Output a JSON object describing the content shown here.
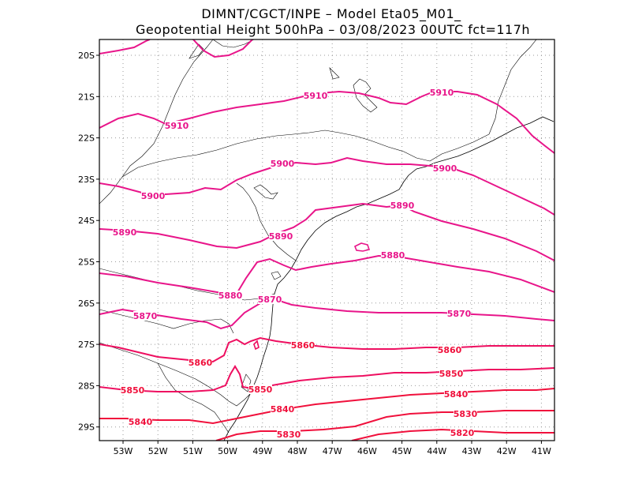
{
  "header": {
    "line1": "DIMNT/CGCT/INPE –  Model Eta05_M01_",
    "line2": "Geopotential Height 500hPa –  03/08/2023 00UTC fct=117h"
  },
  "colors": {
    "frame": "#000000",
    "grid": "#9a9a9a",
    "coast": "#000000",
    "contour_high": "#e8158a",
    "contour_low": "#f0103c"
  },
  "axes": {
    "lon_labels": [
      "53W",
      "52W",
      "51W",
      "50W",
      "49W",
      "48W",
      "47W",
      "46W",
      "45W",
      "44W",
      "43W",
      "42W",
      "41W"
    ],
    "lat_labels": [
      "20S",
      "21S",
      "22S",
      "23S",
      "24S",
      "25S",
      "26S",
      "27S",
      "28S",
      "29S"
    ]
  },
  "contours": [
    {
      "value": 5910,
      "labels": [
        "5910",
        "5910",
        "5910"
      ]
    },
    {
      "value": 5900,
      "labels": [
        "5900",
        "5900",
        "5900"
      ]
    },
    {
      "value": 5890,
      "labels": [
        "5890",
        "5890",
        "5890"
      ]
    },
    {
      "value": 5880,
      "labels": [
        "5880",
        "5880"
      ]
    },
    {
      "value": 5870,
      "labels": [
        "5870",
        "5870",
        "5870"
      ]
    },
    {
      "value": 5860,
      "labels": [
        "5860",
        "5860",
        "5860"
      ]
    },
    {
      "value": 5850,
      "labels": [
        "5850",
        "5850",
        "5850"
      ]
    },
    {
      "value": 5840,
      "labels": [
        "5840",
        "5840",
        "5840"
      ]
    },
    {
      "value": 5830,
      "labels": [
        "5830",
        "5830"
      ]
    },
    {
      "value": 5820,
      "labels": [
        "5820"
      ]
    }
  ]
}
